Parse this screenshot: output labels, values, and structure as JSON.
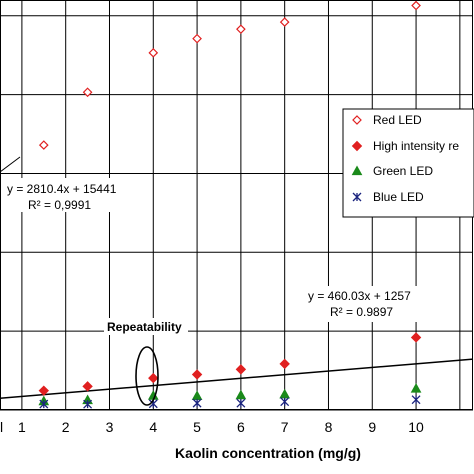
{
  "chart_data": {
    "type": "scatter",
    "xlabel": "Kaolin concentration (mg/g)",
    "ylabel": "",
    "title": "",
    "xlim": [
      0.5,
      11.3
    ],
    "ylim": [
      0,
      52000
    ],
    "x_ticks": [
      "1",
      "2",
      "3",
      "4",
      "5",
      "6",
      "7",
      "8",
      "9",
      "10"
    ],
    "grid": true,
    "legend_position": "right",
    "series": [
      {
        "name": "Red LED",
        "marker": "open-diamond",
        "color": "#e02020",
        "x": [
          1.5,
          2.5,
          4,
          5,
          6,
          7,
          10
        ],
        "y": [
          33600,
          40300,
          45300,
          47100,
          48300,
          49200,
          51300
        ]
      },
      {
        "name": "High intensity re",
        "marker": "filled-diamond",
        "color": "#e02020",
        "x": [
          1.5,
          2.5,
          4,
          5,
          6,
          7,
          10
        ],
        "y": [
          2450,
          3000,
          4050,
          4500,
          5150,
          5850,
          9200
        ]
      },
      {
        "name": "Green LED",
        "marker": "triangle",
        "color": "#1a8a1a",
        "x": [
          1.5,
          2.5,
          4,
          5,
          6,
          7,
          10
        ],
        "y": [
          1120,
          1270,
          1820,
          1790,
          1880,
          2000,
          2720
        ]
      },
      {
        "name": "Blue LED",
        "marker": "asterisk",
        "color": "#1a237e",
        "x": [
          1.5,
          2.5,
          4,
          5,
          6,
          7,
          10
        ],
        "y": [
          750,
          740,
          790,
          870,
          860,
          1050,
          1310
        ]
      }
    ],
    "trendlines": [
      {
        "series": "High intensity re",
        "slope": 460.03,
        "intercept": 1257,
        "x_range": [
          0.5,
          11.3
        ]
      }
    ],
    "annotations": [
      {
        "id": "eq_red",
        "lines": [
          "y = 2810.4x + 15441",
          "R² = 0,9991"
        ]
      },
      {
        "id": "eq_high",
        "lines": [
          "y = 460.03x + 1257",
          "R² = 0.9897"
        ]
      },
      {
        "id": "repeatability",
        "text": "Repeatability"
      }
    ],
    "edge_fragment": "l"
  }
}
